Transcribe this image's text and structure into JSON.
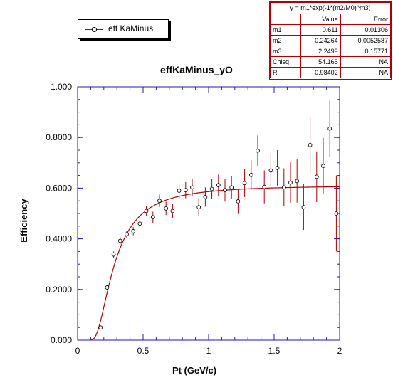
{
  "chart_data": {
    "type": "scatter",
    "title": "effKaMinus_yO",
    "xlabel": "Pt (GeV/c)",
    "ylabel": "Efficiency",
    "xlim": [
      0,
      2
    ],
    "ylim": [
      0,
      1
    ],
    "x_ticks": [
      "0",
      "0.5",
      "1",
      "1.5",
      "2"
    ],
    "y_ticks": [
      "0.000",
      "0.2000",
      "0.4000",
      "0.6000",
      "0.8000",
      "1.000"
    ],
    "legend": {
      "label": "eff KaMinus",
      "placement": "top-left"
    },
    "series": [
      {
        "name": "eff KaMinus",
        "points": [
          {
            "x": 0.175,
            "y": 0.05,
            "err": 0.004
          },
          {
            "x": 0.225,
            "y": 0.208,
            "err": 0.01
          },
          {
            "x": 0.275,
            "y": 0.338,
            "err": 0.012
          },
          {
            "x": 0.325,
            "y": 0.392,
            "err": 0.014
          },
          {
            "x": 0.375,
            "y": 0.418,
            "err": 0.015
          },
          {
            "x": 0.425,
            "y": 0.43,
            "err": 0.016
          },
          {
            "x": 0.475,
            "y": 0.46,
            "err": 0.018
          },
          {
            "x": 0.525,
            "y": 0.51,
            "err": 0.02
          },
          {
            "x": 0.575,
            "y": 0.485,
            "err": 0.022
          },
          {
            "x": 0.625,
            "y": 0.55,
            "err": 0.024
          },
          {
            "x": 0.675,
            "y": 0.52,
            "err": 0.026
          },
          {
            "x": 0.725,
            "y": 0.51,
            "err": 0.028
          },
          {
            "x": 0.775,
            "y": 0.59,
            "err": 0.03
          },
          {
            "x": 0.825,
            "y": 0.592,
            "err": 0.032
          },
          {
            "x": 0.875,
            "y": 0.603,
            "err": 0.035
          },
          {
            "x": 0.925,
            "y": 0.525,
            "err": 0.035
          },
          {
            "x": 0.975,
            "y": 0.565,
            "err": 0.038
          },
          {
            "x": 1.025,
            "y": 0.597,
            "err": 0.04
          },
          {
            "x": 1.075,
            "y": 0.612,
            "err": 0.042
          },
          {
            "x": 1.125,
            "y": 0.592,
            "err": 0.045
          },
          {
            "x": 1.175,
            "y": 0.603,
            "err": 0.045
          },
          {
            "x": 1.225,
            "y": 0.548,
            "err": 0.05
          },
          {
            "x": 1.275,
            "y": 0.62,
            "err": 0.055
          },
          {
            "x": 1.325,
            "y": 0.652,
            "err": 0.058
          },
          {
            "x": 1.375,
            "y": 0.748,
            "err": 0.06
          },
          {
            "x": 1.425,
            "y": 0.605,
            "err": 0.065
          },
          {
            "x": 1.475,
            "y": 0.67,
            "err": 0.068
          },
          {
            "x": 1.525,
            "y": 0.68,
            "err": 0.07
          },
          {
            "x": 1.575,
            "y": 0.603,
            "err": 0.075
          },
          {
            "x": 1.625,
            "y": 0.622,
            "err": 0.08
          },
          {
            "x": 1.675,
            "y": 0.628,
            "err": 0.085
          },
          {
            "x": 1.725,
            "y": 0.525,
            "err": 0.09
          },
          {
            "x": 1.775,
            "y": 0.77,
            "err": 0.11
          },
          {
            "x": 1.825,
            "y": 0.645,
            "err": 0.1
          },
          {
            "x": 1.875,
            "y": 0.688,
            "err": 0.11
          },
          {
            "x": 1.925,
            "y": 0.835,
            "err": 0.11
          },
          {
            "x": 1.975,
            "y": 0.5,
            "err": 0.15
          }
        ]
      }
    ],
    "fit": {
      "formula": "y = m1*exp(-1*(m2/M0)^m3)",
      "params": {
        "m1": 0.611,
        "m2": 0.24264,
        "m3": 2.2499
      },
      "color": "#b00000"
    },
    "colors": {
      "error_bars": "#b00000",
      "fit_line": "#b00000",
      "axes": "#1a1acc"
    }
  },
  "fit_table": {
    "formula": "y = m1*exp(-1*(m2/M0)^m3)",
    "header": [
      "",
      "Value",
      "Error"
    ],
    "rows": [
      [
        "m1",
        "0.611",
        "0.01306"
      ],
      [
        "m2",
        "0.24264",
        "0.0052587"
      ],
      [
        "m3",
        "2.2499",
        "0.15771"
      ],
      [
        "Chisq",
        "54.165",
        "NA"
      ],
      [
        "R",
        "0.98402",
        "NA"
      ]
    ]
  }
}
